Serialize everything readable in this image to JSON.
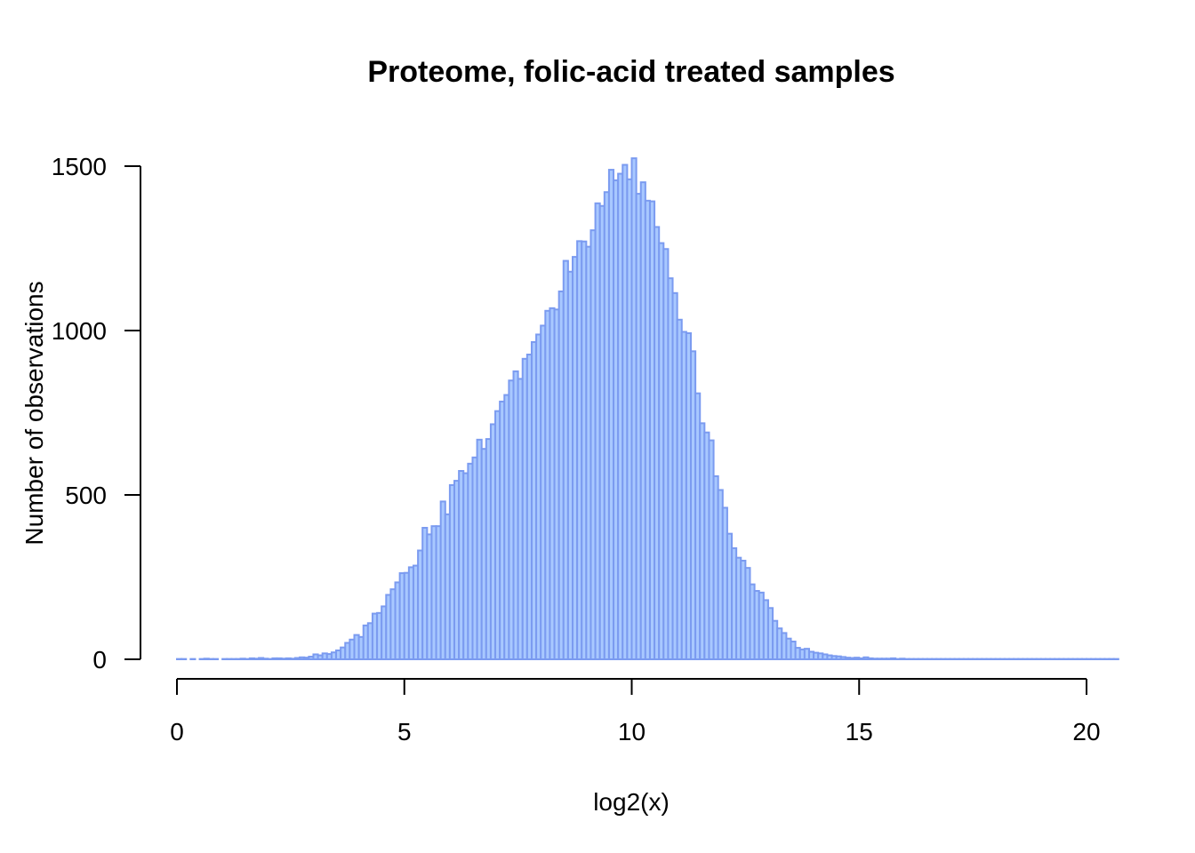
{
  "chart_data": {
    "type": "bar",
    "title": "Proteome, folic-acid treated samples",
    "xlabel": "log2(x)",
    "ylabel": "Number of observations",
    "xlim": [
      0,
      20
    ],
    "ylim": [
      0,
      1500
    ],
    "x_ticks": [
      "0",
      "5",
      "10",
      "15",
      "20"
    ],
    "y_ticks": [
      "0",
      "500",
      "1000",
      "1500"
    ],
    "bin_width": 0.1,
    "bin_start": 0,
    "values": [
      1,
      1,
      0,
      1,
      0,
      1,
      2,
      1,
      1,
      0,
      1,
      1,
      1,
      1,
      2,
      1,
      3,
      2,
      4,
      2,
      1,
      3,
      3,
      2,
      3,
      2,
      4,
      6,
      5,
      8,
      15,
      12,
      18,
      16,
      21,
      27,
      36,
      50,
      60,
      74,
      68,
      103,
      110,
      139,
      141,
      161,
      196,
      213,
      234,
      262,
      263,
      280,
      285,
      331,
      400,
      380,
      405,
      405,
      480,
      441,
      530,
      543,
      573,
      566,
      595,
      614,
      668,
      640,
      670,
      715,
      755,
      784,
      804,
      848,
      876,
      853,
      914,
      927,
      965,
      988,
      1015,
      1060,
      1068,
      1064,
      1119,
      1212,
      1179,
      1224,
      1272,
      1271,
      1255,
      1305,
      1387,
      1379,
      1421,
      1489,
      1457,
      1477,
      1504,
      1460,
      1524,
      1416,
      1451,
      1395,
      1393,
      1315,
      1266,
      1248,
      1159,
      1114,
      1033,
      996,
      992,
      937,
      809,
      718,
      690,
      666,
      557,
      515,
      461,
      382,
      338,
      309,
      300,
      278,
      228,
      208,
      203,
      180,
      156,
      117,
      94,
      80,
      63,
      54,
      35,
      30,
      32,
      23,
      20,
      18,
      15,
      12,
      10,
      9,
      7,
      5,
      4,
      5,
      3,
      6,
      3,
      2,
      2,
      2,
      2,
      3,
      1,
      2,
      1,
      1,
      1,
      1,
      1,
      1,
      1,
      1,
      1,
      1,
      1,
      1,
      1,
      1,
      1,
      1,
      1,
      1,
      1,
      1,
      1,
      1,
      1,
      1,
      1,
      1,
      1,
      1,
      1,
      1,
      1,
      1,
      1,
      1,
      1,
      1,
      1,
      1,
      1,
      1,
      1,
      1,
      1,
      1,
      1,
      1,
      1
    ],
    "colors": {
      "bar_fill": "#a8c8ff",
      "bar_stroke": "#7b9bf0",
      "axis": "#000000"
    },
    "grid": false,
    "legend": "none"
  }
}
